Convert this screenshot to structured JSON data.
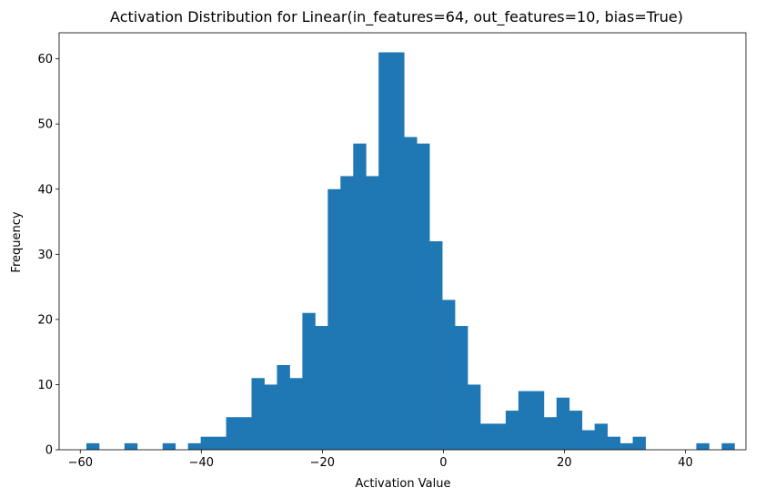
{
  "chart_data": {
    "type": "bar",
    "subtype": "histogram",
    "title": "Activation Distribution for Linear(in_features=64, out_features=10, bias=True)",
    "xlabel": "Activation Value",
    "ylabel": "Frequency",
    "xlim": [
      -63.5,
      50.0
    ],
    "ylim": [
      0,
      64
    ],
    "grid": false,
    "legend": "none",
    "bar_color": "#1f77b4",
    "bin_start": -59.0,
    "bin_width": 2.1,
    "counts": [
      1,
      0,
      0,
      1,
      0,
      0,
      1,
      0,
      1,
      2,
      2,
      5,
      5,
      11,
      10,
      13,
      11,
      21,
      19,
      40,
      42,
      47,
      42,
      61,
      61,
      48,
      47,
      32,
      23,
      19,
      10,
      4,
      4,
      6,
      9,
      9,
      5,
      8,
      6,
      3,
      4,
      2,
      1,
      2,
      0,
      0,
      0,
      0,
      1,
      0,
      1
    ],
    "x_ticks": [
      -60,
      -40,
      -20,
      0,
      20,
      40
    ],
    "x_tick_labels": [
      "−60",
      "−40",
      "−20",
      "0",
      "20",
      "40"
    ],
    "y_ticks": [
      0,
      10,
      20,
      30,
      40,
      50,
      60
    ],
    "y_tick_labels": [
      "0",
      "10",
      "20",
      "30",
      "40",
      "50",
      "60"
    ]
  }
}
